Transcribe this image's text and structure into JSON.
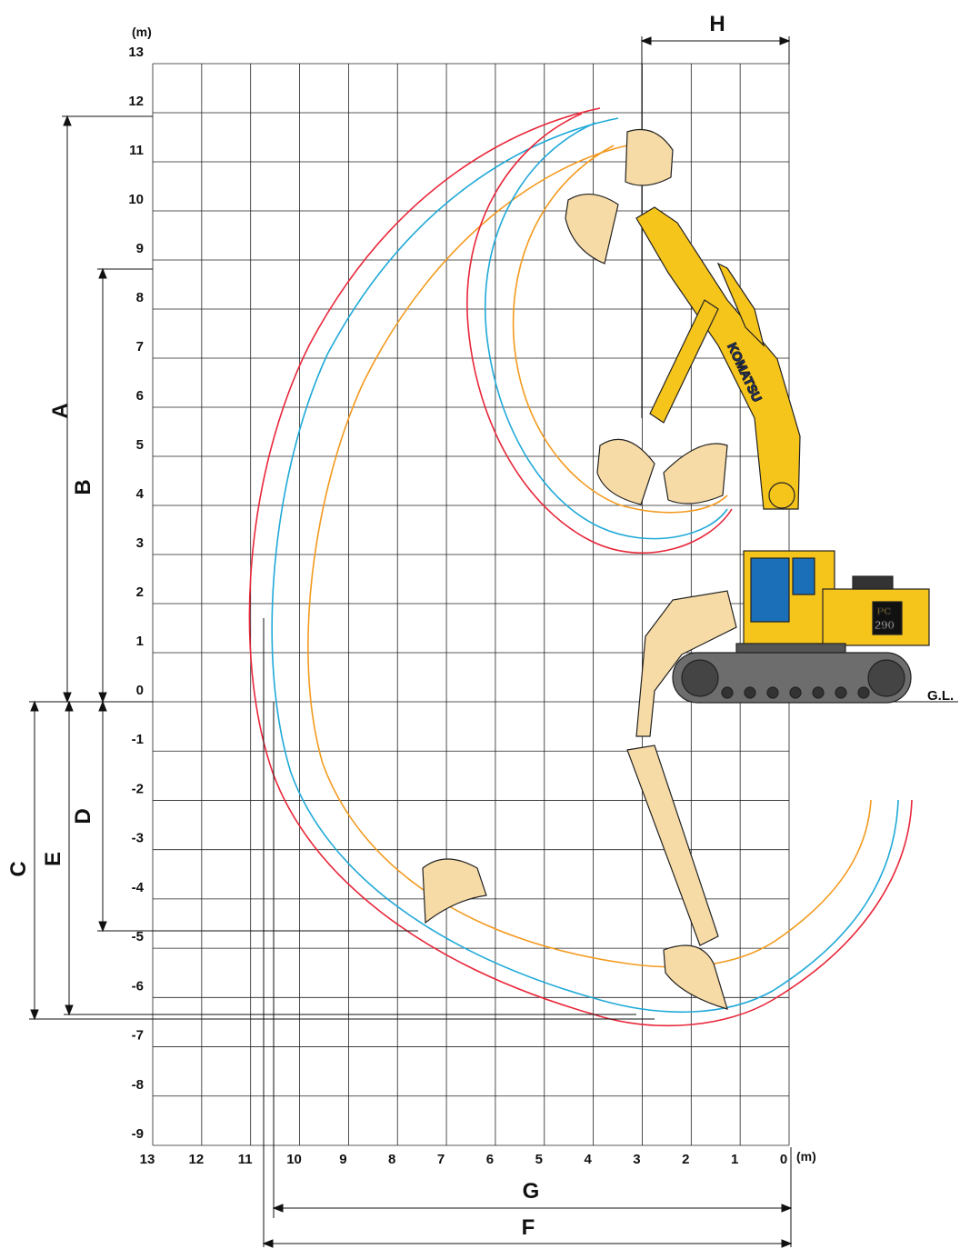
{
  "axes": {
    "y_unit": "(m)",
    "x_unit": "(m)",
    "y_ticks": [
      "13",
      "12",
      "11",
      "10",
      "9",
      "8",
      "7",
      "6",
      "5",
      "4",
      "3",
      "2",
      "1",
      "0",
      "-1",
      "-2",
      "-3",
      "-4",
      "-5",
      "-6",
      "-7",
      "-8",
      "-9"
    ],
    "x_ticks": [
      "13",
      "12",
      "11",
      "10",
      "9",
      "8",
      "7",
      "6",
      "5",
      "4",
      "3",
      "2",
      "1",
      "0"
    ],
    "x_range": [
      13,
      0
    ],
    "y_range": [
      -9,
      13
    ]
  },
  "ground_label": "G.L.",
  "dimensions": {
    "A": "A",
    "B": "B",
    "C": "C",
    "D": "D",
    "E": "E",
    "F": "F",
    "G": "G",
    "H": "H"
  },
  "model": {
    "brand": "KOMATSU",
    "badge_top": "PC",
    "badge_bottom": "290"
  },
  "colors": {
    "envelope_red": "#e8273a",
    "envelope_blue": "#1fa9d8",
    "envelope_orange": "#f39a1e",
    "machine_yellow": "#f6c51c",
    "bucket_fill": "#f7dba6",
    "grid": "#222222"
  }
}
